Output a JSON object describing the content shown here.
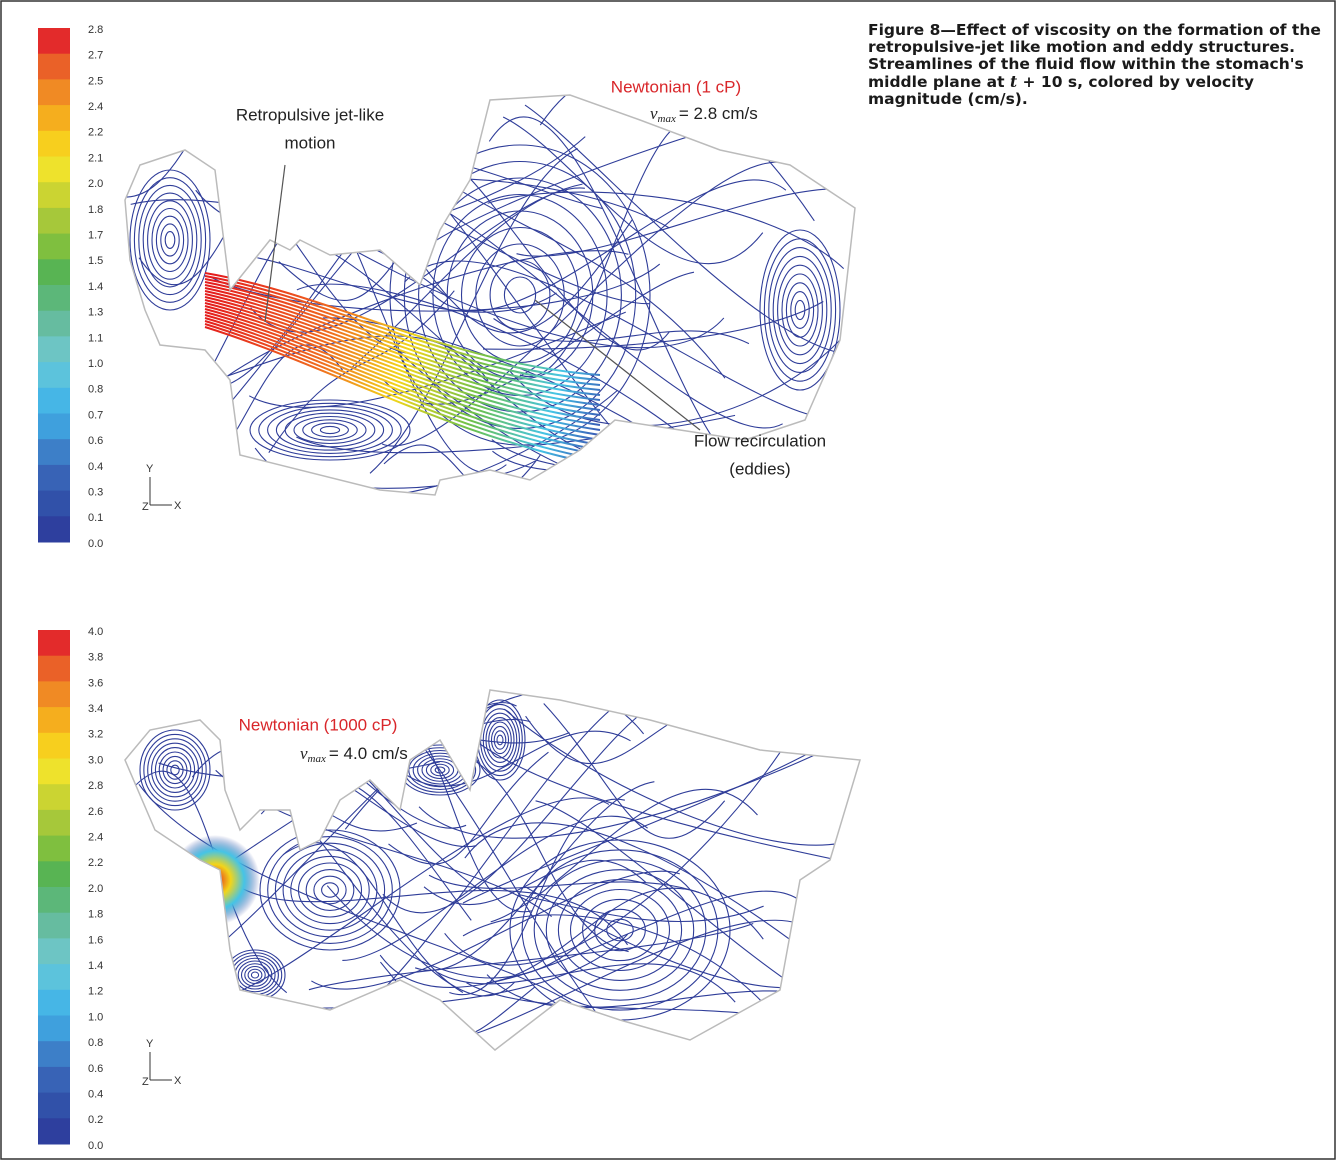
{
  "figure": {
    "caption": {
      "before": "Figure 8—Effect of viscosity on the formation of the retropulsive-jet like motion and eddy structures. Streamlines of the fluid flow within the stomach's middle plane at ",
      "symbol": "t",
      "after": " + 10 s, colored by velocity magnitude (cm/s)."
    },
    "panels": [
      {
        "colorbar": [
          "2.8",
          "2.7",
          "2.5",
          "2.4",
          "2.2",
          "2.1",
          "2.0",
          "1.8",
          "1.7",
          "1.5",
          "1.4",
          "1.3",
          "1.1",
          "1.0",
          "0.8",
          "0.7",
          "0.6",
          "0.4",
          "0.3",
          "0.1",
          "0.0"
        ],
        "title": "Newtonian (1 cP)",
        "vmax": {
          "symbol": "v",
          "subscript": "max",
          "text": "= 2.8 cm/s"
        },
        "annotations": [
          {
            "lines": [
              "Retropulsive jet-like",
              "motion"
            ]
          },
          {
            "lines": [
              "Flow recirculation",
              "(eddies)"
            ]
          }
        ],
        "axes": {
          "y": "Y",
          "z": "Z",
          "x": "X"
        }
      },
      {
        "colorbar": [
          "4.0",
          "3.8",
          "3.6",
          "3.4",
          "3.2",
          "3.0",
          "2.8",
          "2.6",
          "2.4",
          "2.2",
          "2.0",
          "1.8",
          "1.6",
          "1.4",
          "1.2",
          "1.0",
          "0.8",
          "0.6",
          "0.4",
          "0.2",
          "0.0"
        ],
        "title": "Newtonian (1000 cP)",
        "vmax": {
          "symbol": "v",
          "subscript": "max",
          "text": "= 4.0 cm/s"
        },
        "annotations": [],
        "axes": {
          "y": "Y",
          "z": "Z",
          "x": "X"
        }
      }
    ]
  }
}
